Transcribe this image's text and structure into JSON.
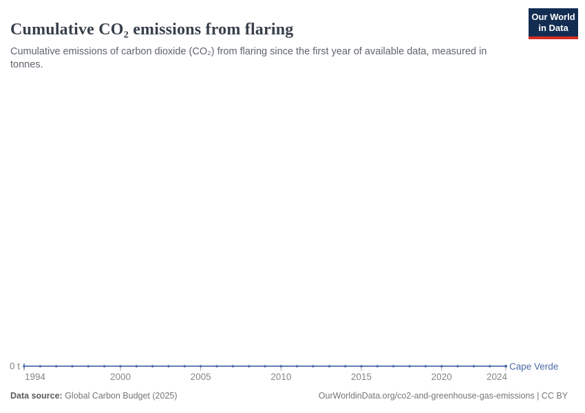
{
  "header": {
    "title": "Cumulative CO₂ emissions from flaring",
    "subtitle": "Cumulative emissions of carbon dioxide (CO₂) from flaring since the first year of available data, measured in tonnes."
  },
  "logo": {
    "line1": "Our World",
    "line2": "in Data",
    "bg_color": "#132d52",
    "stripe_color": "#d72d23"
  },
  "chart_data": {
    "type": "line",
    "title": "Cumulative CO₂ emissions from flaring",
    "xlabel": "",
    "ylabel": "tonnes",
    "x": [
      1994,
      1995,
      1996,
      1997,
      1998,
      1999,
      2000,
      2001,
      2002,
      2003,
      2004,
      2005,
      2006,
      2007,
      2008,
      2009,
      2010,
      2011,
      2012,
      2013,
      2014,
      2015,
      2016,
      2017,
      2018,
      2019,
      2020,
      2021,
      2022,
      2023,
      2024
    ],
    "series": [
      {
        "name": "Cape Verde",
        "color": "#4c6ba8",
        "values": [
          0,
          0,
          0,
          0,
          0,
          0,
          0,
          0,
          0,
          0,
          0,
          0,
          0,
          0,
          0,
          0,
          0,
          0,
          0,
          0,
          0,
          0,
          0,
          0,
          0,
          0,
          0,
          0,
          0,
          0,
          0
        ]
      }
    ],
    "x_ticks": [
      1994,
      2000,
      2005,
      2010,
      2015,
      2020,
      2024
    ],
    "y_ticks": [
      {
        "value": 0,
        "label": "0 t"
      }
    ],
    "xlim": [
      1994,
      2024
    ],
    "ylim": [
      0,
      0
    ],
    "grid": false,
    "legend_position": "end-of-line",
    "axis_text_color": "#858585",
    "tick_color": "#9e9e9e"
  },
  "footer": {
    "source_label": "Data source:",
    "source_value": " Global Carbon Budget (2025)",
    "citation": "OurWorldinData.org/co2-and-greenhouse-gas-emissions | CC BY"
  }
}
